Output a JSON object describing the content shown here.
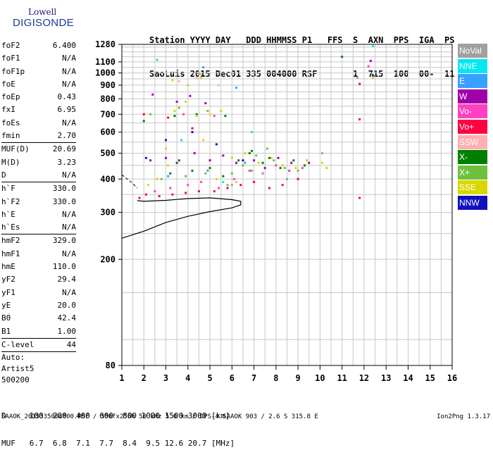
{
  "logo": {
    "line1": "Lowell",
    "line2": "DIGISONDE"
  },
  "header": {
    "line1": "Station YYYY DAY   DDD HHMMSS P1   FFS  S  AXN  PPS  IGA  PS",
    "line2": "SaoLuis 2015 Dec01 335 004000 RSF       1  715  100  00-  11"
  },
  "params": [
    {
      "k": "foF2",
      "v": "6.400"
    },
    {
      "k": "foF1",
      "v": "N/A"
    },
    {
      "k": "foF1p",
      "v": "N/A"
    },
    {
      "k": "foE",
      "v": "N/A"
    },
    {
      "k": "foEp",
      "v": "0.43"
    },
    {
      "k": "fxI",
      "v": "6.95"
    },
    {
      "k": "foEs",
      "v": "N/A"
    },
    {
      "k": "fmin",
      "v": "2.70"
    },
    {
      "sep": true
    },
    {
      "k": "MUF(D)",
      "v": "20.69"
    },
    {
      "k": "M(D)",
      "v": "3.23"
    },
    {
      "k": "D",
      "v": "N/A"
    },
    {
      "sep": true
    },
    {
      "k": "h`F",
      "v": "330.0"
    },
    {
      "k": "h`F2",
      "v": "330.0"
    },
    {
      "k": "h`E",
      "v": "N/A"
    },
    {
      "k": "h`Es",
      "v": "N/A"
    },
    {
      "sep": true
    },
    {
      "k": "hmF2",
      "v": "329.0"
    },
    {
      "k": "hmF1",
      "v": "N/A"
    },
    {
      "k": "hmE",
      "v": "110.0"
    },
    {
      "k": "yF2",
      "v": "29.4"
    },
    {
      "k": "yF1",
      "v": "N/A"
    },
    {
      "k": "yE",
      "v": "20.0"
    },
    {
      "k": "B0",
      "v": "42.4"
    },
    {
      "k": "B1",
      "v": "1.00"
    },
    {
      "sep": true
    },
    {
      "k": "C-level",
      "v": "44"
    },
    {
      "sep": true
    }
  ],
  "auto": [
    "Auto:",
    "Artist5",
    "500200"
  ],
  "legend": [
    {
      "label": "NoVal",
      "color": "#a0a0a0"
    },
    {
      "label": "NNE",
      "color": "#00e8f0"
    },
    {
      "label": "E",
      "color": "#3aa0ff"
    },
    {
      "label": "W",
      "color": "#a000a8"
    },
    {
      "label": "Vo-",
      "color": "#ff40c0"
    },
    {
      "label": "Vo+",
      "color": "#ff0040"
    },
    {
      "label": "SSW",
      "color": "#ffb0b0"
    },
    {
      "label": "X-",
      "color": "#008000"
    },
    {
      "label": "X+",
      "color": "#70c040"
    },
    {
      "label": "SSE",
      "color": "#d8d800"
    },
    {
      "label": "NNW",
      "color": "#1010c0"
    }
  ],
  "footer": {
    "line1": "D     100  200  400  600  800 1000 1500 3000 [km]",
    "line2": "MUF   6.7  6.8  7.1  7.7  8.4  9.5 12.6 20.7 [MHz]"
  },
  "bottom_line": "SAAOK_2015335004000.RSF / 300fx256h 50 kHz 5.0 km / DPS-4 SAAOK 903 / 2.6 S 315.8 E",
  "version": "Ion2Png 1.3.17",
  "chart_data": {
    "type": "scatter",
    "xlabel": "",
    "ylabel": "",
    "xlim": [
      1,
      16
    ],
    "ylim": [
      80,
      1280
    ],
    "x_ticks": [
      1,
      2,
      3,
      4,
      5,
      6,
      7,
      8,
      9,
      10,
      11,
      12,
      13,
      14,
      15,
      16
    ],
    "y_ticks": [
      80,
      200,
      300,
      400,
      500,
      600,
      700,
      800,
      900,
      1000,
      1100,
      1280
    ],
    "y_scale": "log",
    "grid": true,
    "series": [
      {
        "name": "X-",
        "color": "#008000",
        "points": [
          [
            3.2,
            420
          ],
          [
            3.5,
            460
          ],
          [
            4.2,
            430
          ],
          [
            5.0,
            440
          ],
          [
            5.6,
            410
          ],
          [
            6.3,
            470
          ],
          [
            6.8,
            500
          ],
          [
            7.4,
            460
          ],
          [
            8.2,
            440
          ],
          [
            8.8,
            470
          ],
          [
            9.3,
            450
          ],
          [
            2.0,
            660
          ],
          [
            3.4,
            690
          ],
          [
            4.4,
            700
          ],
          [
            5.7,
            690
          ],
          [
            6.9,
            510
          ],
          [
            7.7,
            480
          ],
          [
            8.6,
            430
          ]
        ]
      },
      {
        "name": "X+",
        "color": "#70c040",
        "points": [
          [
            2.8,
            400
          ],
          [
            3.9,
            410
          ],
          [
            4.8,
            420
          ],
          [
            5.8,
            380
          ],
          [
            6.5,
            450
          ],
          [
            7.1,
            490
          ],
          [
            7.9,
            470
          ],
          [
            8.4,
            440
          ],
          [
            9.0,
            430
          ],
          [
            2.3,
            700
          ],
          [
            3.6,
            740
          ],
          [
            4.9,
            720
          ],
          [
            6.0,
            420
          ],
          [
            6.9,
            430
          ],
          [
            7.6,
            520
          ]
        ]
      },
      {
        "name": "SSE",
        "color": "#d8d800",
        "points": [
          [
            2.2,
            380
          ],
          [
            2.6,
            400
          ],
          [
            3.0,
            520
          ],
          [
            3.4,
            720
          ],
          [
            3.9,
            780
          ],
          [
            4.4,
            690
          ],
          [
            5.0,
            700
          ],
          [
            5.5,
            720
          ],
          [
            6.0,
            480
          ],
          [
            6.6,
            500
          ],
          [
            7.2,
            460
          ],
          [
            7.8,
            480
          ],
          [
            8.3,
            450
          ],
          [
            8.9,
            440
          ],
          [
            9.4,
            470
          ],
          [
            10.1,
            460
          ],
          [
            10.3,
            440
          ],
          [
            3.3,
            940
          ],
          [
            4.0,
            900
          ],
          [
            4.6,
            960
          ],
          [
            12.4,
            960
          ],
          [
            5.3,
            400
          ],
          [
            6.2,
            390
          ],
          [
            4.7,
            560
          ],
          [
            3.1,
            450
          ]
        ]
      },
      {
        "name": "W",
        "color": "#a000a8",
        "points": [
          [
            2.3,
            470
          ],
          [
            3.0,
            480
          ],
          [
            3.6,
            470
          ],
          [
            4.3,
            500
          ],
          [
            5.0,
            470
          ],
          [
            5.6,
            490
          ],
          [
            6.2,
            460
          ],
          [
            7.0,
            470
          ],
          [
            7.5,
            440
          ],
          [
            8.1,
            480
          ],
          [
            8.7,
            460
          ],
          [
            9.5,
            460
          ],
          [
            12.3,
            1110
          ],
          [
            3.5,
            780
          ],
          [
            4.1,
            820
          ],
          [
            4.8,
            770
          ],
          [
            2.4,
            830
          ]
        ]
      },
      {
        "name": "Vo-",
        "color": "#ff40c0",
        "points": [
          [
            2.5,
            360
          ],
          [
            3.2,
            370
          ],
          [
            4.0,
            380
          ],
          [
            4.6,
            390
          ],
          [
            5.4,
            370
          ],
          [
            6.1,
            400
          ],
          [
            6.8,
            430
          ],
          [
            7.4,
            420
          ],
          [
            8.0,
            450
          ],
          [
            8.6,
            430
          ],
          [
            9.2,
            440
          ],
          [
            3.8,
            700
          ],
          [
            5.2,
            690
          ],
          [
            12.2,
            1060
          ]
        ]
      },
      {
        "name": "Vo+",
        "color": "#ff0040",
        "points": [
          [
            1.8,
            340
          ],
          [
            2.1,
            350
          ],
          [
            2.7,
            345
          ],
          [
            3.3,
            350
          ],
          [
            3.9,
            355
          ],
          [
            4.5,
            360
          ],
          [
            5.2,
            360
          ],
          [
            5.8,
            370
          ],
          [
            6.4,
            380
          ],
          [
            7.0,
            390
          ],
          [
            7.7,
            370
          ],
          [
            8.3,
            380
          ],
          [
            9.0,
            400
          ],
          [
            11.8,
            670
          ],
          [
            11.8,
            340
          ],
          [
            11.8,
            910
          ],
          [
            4.2,
            620
          ],
          [
            2.0,
            700
          ],
          [
            3.1,
            680
          ]
        ]
      },
      {
        "name": "E",
        "color": "#3aa0ff",
        "points": [
          [
            3.1,
            410
          ],
          [
            4.9,
            430
          ],
          [
            6.6,
            460
          ],
          [
            4.7,
            1050
          ],
          [
            6.2,
            880
          ]
        ]
      },
      {
        "name": "NNE",
        "color": "#00e8f0",
        "points": [
          [
            2.6,
            1120
          ],
          [
            3.7,
            560
          ],
          [
            5.6,
            390
          ],
          [
            12.4,
            1260
          ],
          [
            6.9,
            600
          ]
        ]
      },
      {
        "name": "NNW",
        "color": "#1010c0",
        "points": [
          [
            2.1,
            480
          ],
          [
            3.0,
            560
          ],
          [
            4.2,
            600
          ],
          [
            5.3,
            540
          ],
          [
            6.5,
            470
          ],
          [
            12.4,
            980
          ]
        ]
      },
      {
        "name": "NoVal",
        "color": "#a0a0a0",
        "points": [
          [
            7.4,
            420
          ],
          [
            8.5,
            400
          ],
          [
            10.1,
            500
          ],
          [
            11.7,
            960
          ],
          [
            6.0,
            380
          ]
        ]
      },
      {
        "name": "SSW",
        "color": "#ffb0b0",
        "points": [
          [
            3.6,
            930
          ],
          [
            4.4,
            960
          ],
          [
            4.6,
            990
          ],
          [
            5.4,
            900
          ]
        ]
      },
      {
        "name": "",
        "color": "#008000",
        "points": [
          [
            11.0,
            1150
          ]
        ]
      }
    ],
    "profile_trace": [
      [
        1.0,
        240
      ],
      [
        2.0,
        255
      ],
      [
        3.0,
        275
      ],
      [
        4.0,
        290
      ],
      [
        5.0,
        302
      ],
      [
        6.0,
        312
      ],
      [
        6.4,
        320
      ],
      [
        6.4,
        330
      ],
      [
        6.0,
        335
      ],
      [
        5.0,
        340
      ],
      [
        4.0,
        338
      ],
      [
        3.0,
        333
      ],
      [
        2.0,
        330
      ],
      [
        1.7,
        332
      ]
    ],
    "dashed_trace": [
      [
        1.0,
        415
      ],
      [
        1.5,
        385
      ],
      [
        1.7,
        370
      ]
    ]
  }
}
